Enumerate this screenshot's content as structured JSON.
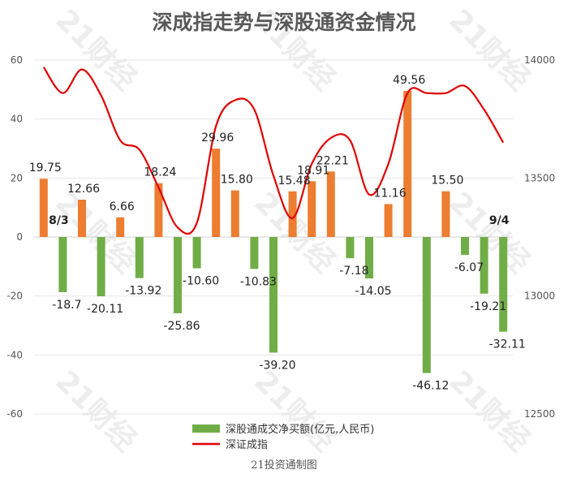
{
  "chart_data": {
    "type": "bar",
    "title": "深成指走势与深股通资金情况",
    "categories": [
      "19.75",
      "-18.7",
      "12.66",
      "-20.11",
      "6.66",
      "-13.92",
      "18.24",
      "-25.86",
      "-10.60",
      "29.96",
      "15.80",
      "-10.83",
      "-39.20",
      "15.48",
      "18.91",
      "22.21",
      "-7.18",
      "-14.05",
      "11.16",
      "49.56",
      "-46.12",
      "15.50",
      "-6.07",
      "-19.21",
      "-32.11"
    ],
    "x_annotations": [
      {
        "index": 1,
        "label": "8/3"
      },
      {
        "index": 24,
        "label": "9/4"
      }
    ],
    "series": [
      {
        "name": "深股通成交净买额(亿元,人民币)",
        "type": "bar",
        "axis": "left",
        "color_positive": "#ED7D31",
        "color_negative": "#70AD47",
        "values": [
          19.75,
          -18.7,
          12.66,
          -20.11,
          6.66,
          -13.92,
          18.24,
          -25.86,
          -10.6,
          29.96,
          15.8,
          -10.83,
          -39.2,
          15.48,
          18.91,
          22.21,
          -7.18,
          -14.05,
          11.16,
          49.56,
          -46.12,
          15.5,
          -6.07,
          -19.21,
          -32.11
        ],
        "labels": [
          "19.75",
          "-18.7",
          "12.66",
          "-20.11",
          "6.66",
          "-13.92",
          "18.24",
          "-25.86",
          "-10.60",
          "29.96",
          "15.80",
          "-10.83",
          "-39.20",
          "15.48",
          "18.91",
          "22.21",
          "-7.18",
          "-14.05",
          "11.16",
          "49.56",
          "-46.12",
          "15.50",
          "-6.07",
          "-19.21",
          "-32.11"
        ]
      },
      {
        "name": "深证成指",
        "type": "line",
        "axis": "right",
        "color": "#E00000",
        "values": [
          13970,
          13860,
          13960,
          13850,
          13660,
          13620,
          13460,
          13290,
          13310,
          13720,
          13830,
          13790,
          13510,
          13330,
          13560,
          13670,
          13660,
          13430,
          13560,
          13860,
          13860,
          13860,
          13890,
          13790,
          13650
        ]
      }
    ],
    "ylim_left": [
      -60,
      60
    ],
    "yticks_left": [
      "60",
      "40",
      "20",
      "0",
      "-20",
      "-40",
      "-60"
    ],
    "ylim_right": [
      12500,
      14000
    ],
    "yticks_right": [
      "14000",
      "13500",
      "13000",
      "12500"
    ],
    "grid": true,
    "legend": "bottom-center",
    "source": "21投资通制图",
    "watermark": "21财经"
  }
}
